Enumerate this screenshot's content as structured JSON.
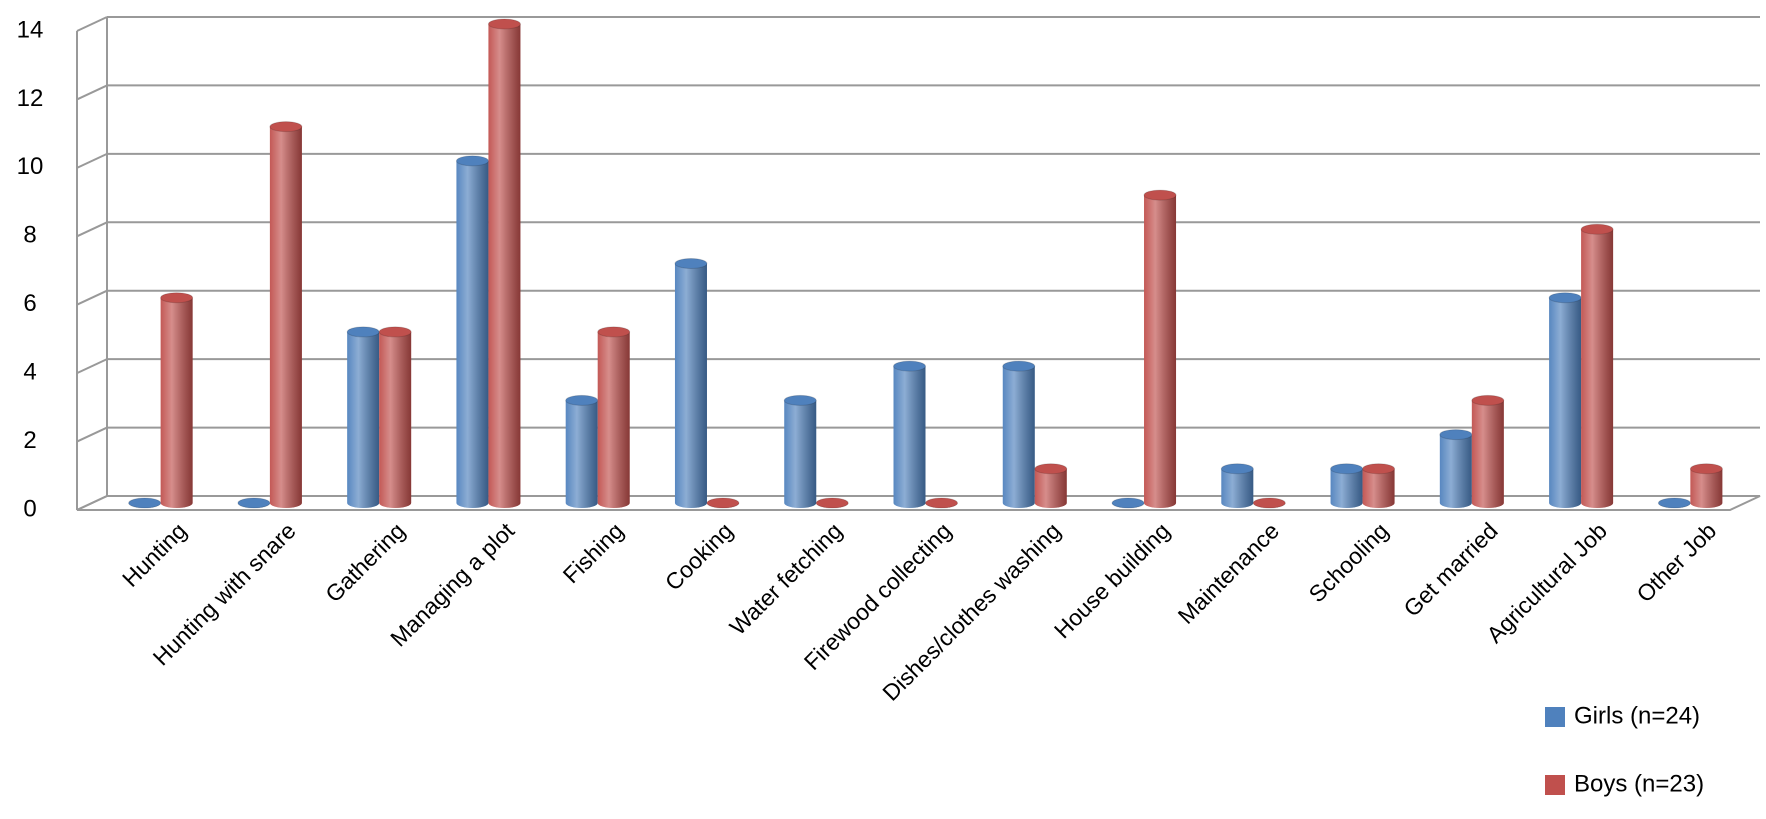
{
  "chart_data": {
    "type": "bar",
    "categories": [
      "Hunting",
      "Hunting with snare",
      "Gathering",
      "Managing a plot",
      "Fishing",
      "Cooking",
      "Water fetching",
      "Firewood collecting",
      "Dishes/clothes washing",
      "House building",
      "Maintenance",
      "Schooling",
      "Get married",
      "Agricultural Job",
      "Other Job"
    ],
    "series": [
      {
        "name": "Girls (n=24)",
        "color": "#4f81bd",
        "values": [
          0,
          0,
          5,
          10,
          3,
          7,
          3,
          4,
          4,
          0,
          1,
          1,
          2,
          6,
          0
        ]
      },
      {
        "name": "Boys (n=23)",
        "color": "#c0504d",
        "values": [
          6,
          11,
          5,
          14,
          5,
          0,
          0,
          0,
          1,
          9,
          0,
          1,
          3,
          8,
          1
        ]
      }
    ],
    "ylim": [
      0,
      14
    ],
    "yticks": [
      0,
      2,
      4,
      6,
      8,
      10,
      12,
      14
    ],
    "grid": true,
    "legend": "bottom-right"
  }
}
